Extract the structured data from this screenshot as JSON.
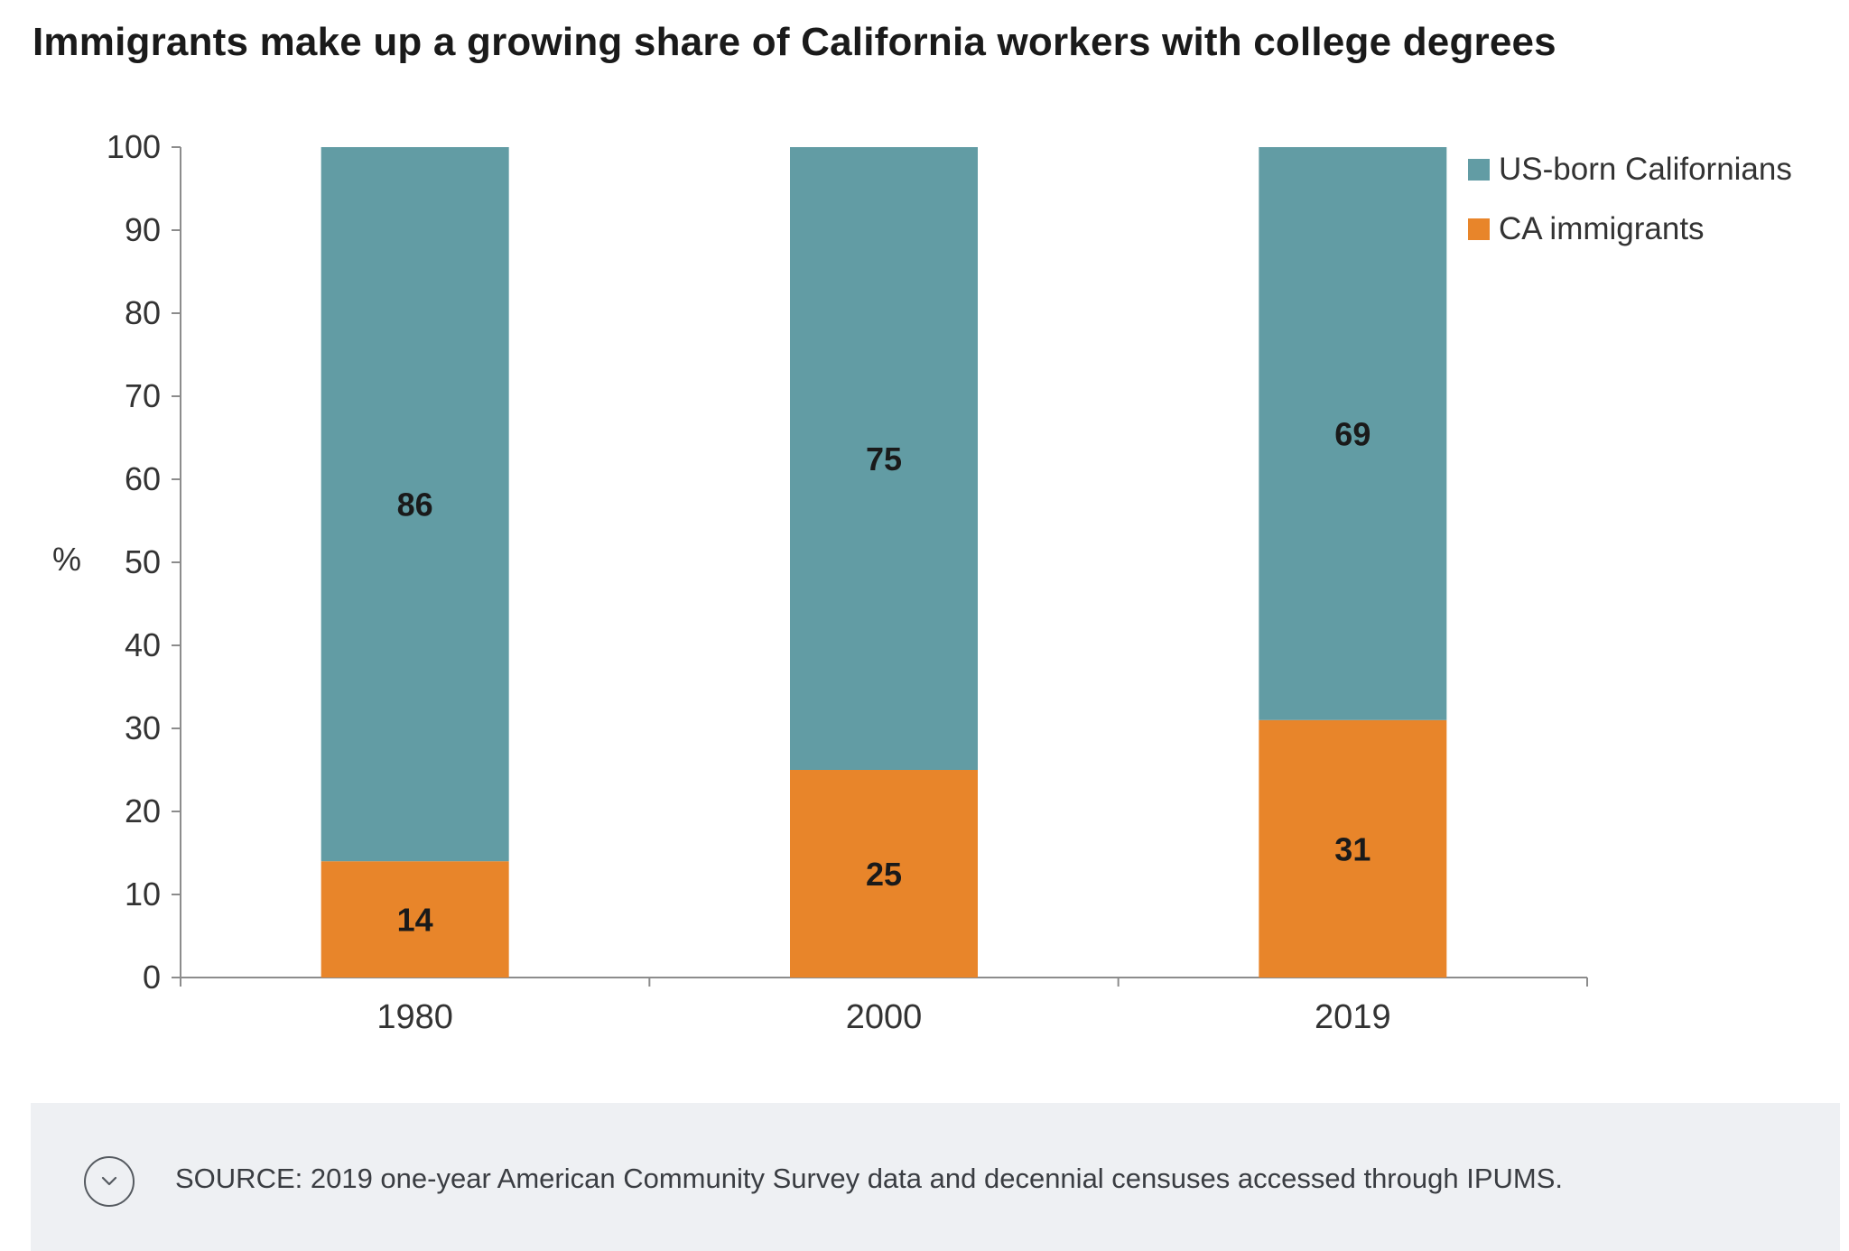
{
  "chart_data": {
    "type": "bar",
    "stacked": true,
    "title": "Immigrants make up a growing share of California workers with college degrees",
    "ylabel": "%",
    "xlabel": "",
    "ylim": [
      0,
      100
    ],
    "yticks": [
      0,
      10,
      20,
      30,
      40,
      50,
      60,
      70,
      80,
      90,
      100
    ],
    "categories": [
      "1980",
      "2000",
      "2019"
    ],
    "series": [
      {
        "name": "CA immigrants",
        "values": [
          14,
          25,
          31
        ],
        "color": "#e8852a"
      },
      {
        "name": "US-born Californians",
        "values": [
          86,
          75,
          69
        ],
        "color": "#629ca4"
      }
    ],
    "legend_order": [
      1,
      0
    ],
    "legend_position": "top-right",
    "grid": false,
    "source": "SOURCE: 2019 one-year American Community Survey data and decennial censuses accessed through IPUMS."
  },
  "footer": {
    "expand_icon": "chevron-down-icon"
  }
}
